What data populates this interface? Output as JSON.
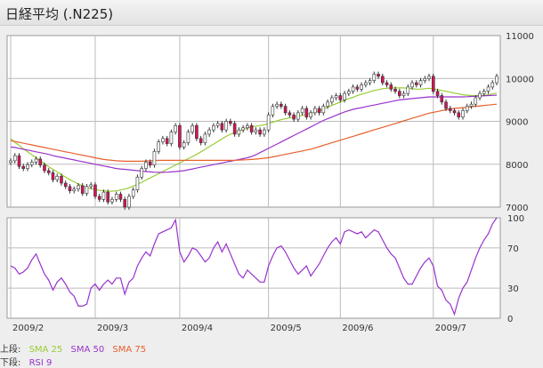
{
  "title": "日経平均 (.N225)",
  "legend": {
    "upper_label": "上段:",
    "lower_label": "下段:",
    "upper": [
      {
        "name": "SMA 25",
        "color": "#99cc33"
      },
      {
        "name": "SMA 50",
        "color": "#9933cc"
      },
      {
        "name": "SMA 75",
        "color": "#e8602c"
      }
    ],
    "lower": [
      {
        "name": "RSI 9",
        "color": "#9933cc"
      }
    ]
  },
  "colors": {
    "up_candle": "#ffffff",
    "down_candle": "#d4145a",
    "candle_outline": "#333333",
    "grid": "#bbbbbb",
    "panel_border": "#999999"
  },
  "chart_data": [
    {
      "type": "candlestick",
      "panel": "price",
      "ylim": [
        7000,
        11000
      ],
      "y_ticks": [
        7000,
        8000,
        9000,
        10000,
        11000
      ],
      "x_ticks": [
        {
          "label": "2009/2",
          "index": 0
        },
        {
          "label": "2009/3",
          "index": 20
        },
        {
          "label": "2009/4",
          "index": 40
        },
        {
          "label": "2009/5",
          "index": 61
        },
        {
          "label": "2009/6",
          "index": 78
        },
        {
          "label": "2009/7",
          "index": 100
        }
      ],
      "close": [
        8080,
        8200,
        7950,
        7900,
        7990,
        8050,
        8120,
        7980,
        7850,
        7800,
        7640,
        7720,
        7560,
        7480,
        7380,
        7420,
        7500,
        7320,
        7480,
        7520,
        7250,
        7180,
        7350,
        7120,
        7180,
        7300,
        7180,
        7000,
        7250,
        7400,
        7700,
        7900,
        8050,
        7980,
        8300,
        8520,
        8600,
        8480,
        8750,
        8900,
        8400,
        8500,
        8750,
        8900,
        8600,
        8500,
        8700,
        8800,
        8900,
        8950,
        8800,
        9000,
        8950,
        8700,
        8800,
        8850,
        8900,
        8750,
        8800,
        8700,
        8800,
        9150,
        9350,
        9400,
        9350,
        9200,
        9150,
        9050,
        9200,
        9300,
        9100,
        9200,
        9300,
        9200,
        9350,
        9450,
        9550,
        9600,
        9500,
        9650,
        9700,
        9800,
        9750,
        9850,
        9900,
        9950,
        10100,
        10050,
        9900,
        9850,
        9750,
        9700,
        9600,
        9650,
        9800,
        9900,
        9850,
        9950,
        10000,
        10050,
        9700,
        9600,
        9450,
        9300,
        9250,
        9200,
        9100,
        9250,
        9350,
        9400,
        9550,
        9650,
        9700,
        9800,
        9900,
        10050
      ],
      "series": [
        {
          "name": "SMA 25",
          "color": "#99cc33",
          "values": [
            8600,
            8510,
            8440,
            8360,
            8290,
            8220,
            8150,
            8080,
            8010,
            7940,
            7880,
            7820,
            7760,
            7700,
            7640,
            7590,
            7540,
            7500,
            7460,
            7430,
            7410,
            7390,
            7380,
            7370,
            7370,
            7380,
            7400,
            7420,
            7450,
            7490,
            7530,
            7580,
            7630,
            7680,
            7730,
            7780,
            7830,
            7880,
            7930,
            7980,
            8030,
            8080,
            8130,
            8180,
            8230,
            8290,
            8350,
            8410,
            8470,
            8530,
            8590,
            8650,
            8700,
            8740,
            8780,
            8810,
            8840,
            8870,
            8890,
            8900,
            8920,
            8950,
            8980,
            9010,
            9040,
            9060,
            9080,
            9100,
            9120,
            9140,
            9160,
            9190,
            9220,
            9250,
            9290,
            9330,
            9370,
            9410,
            9450,
            9490,
            9530,
            9560,
            9600,
            9630,
            9660,
            9690,
            9720,
            9740,
            9760,
            9770,
            9780,
            9780,
            9780,
            9780,
            9770,
            9760,
            9750,
            9750,
            9760,
            9770,
            9760,
            9740,
            9720,
            9700,
            9680,
            9660,
            9640,
            9620,
            9610,
            9600,
            9600,
            9600,
            9610,
            9620,
            9640,
            9660
          ]
        },
        {
          "name": "SMA 50",
          "color": "#9933cc",
          "values": [
            8400,
            8390,
            8370,
            8350,
            8330,
            8310,
            8290,
            8270,
            8250,
            8230,
            8200,
            8180,
            8160,
            8140,
            8120,
            8100,
            8080,
            8060,
            8040,
            8020,
            8000,
            7980,
            7960,
            7940,
            7920,
            7900,
            7890,
            7880,
            7870,
            7860,
            7850,
            7840,
            7830,
            7820,
            7815,
            7810,
            7810,
            7815,
            7820,
            7830,
            7840,
            7850,
            7870,
            7890,
            7910,
            7930,
            7950,
            7970,
            7990,
            8010,
            8030,
            8050,
            8070,
            8090,
            8110,
            8130,
            8150,
            8180,
            8220,
            8270,
            8320,
            8370,
            8420,
            8470,
            8520,
            8570,
            8620,
            8670,
            8720,
            8770,
            8820,
            8870,
            8920,
            8970,
            9020,
            9060,
            9100,
            9140,
            9180,
            9220,
            9250,
            9280,
            9300,
            9320,
            9340,
            9360,
            9380,
            9400,
            9420,
            9440,
            9460,
            9480,
            9500,
            9510,
            9520,
            9530,
            9540,
            9550,
            9560,
            9570,
            9570,
            9570,
            9570,
            9570,
            9570,
            9570,
            9570,
            9570,
            9575,
            9580,
            9585,
            9590,
            9595,
            9600,
            9605,
            9610
          ]
        },
        {
          "name": "SMA 75",
          "color": "#e8602c",
          "values": [
            8550,
            8530,
            8510,
            8490,
            8470,
            8450,
            8430,
            8410,
            8390,
            8370,
            8350,
            8330,
            8310,
            8290,
            8270,
            8250,
            8230,
            8210,
            8190,
            8170,
            8150,
            8130,
            8110,
            8100,
            8090,
            8080,
            8075,
            8070,
            8070,
            8070,
            8070,
            8070,
            8075,
            8080,
            8085,
            8090,
            8090,
            8090,
            8090,
            8090,
            8090,
            8090,
            8090,
            8090,
            8090,
            8090,
            8090,
            8090,
            8090,
            8090,
            8090,
            8090,
            8090,
            8090,
            8095,
            8100,
            8105,
            8110,
            8120,
            8130,
            8140,
            8150,
            8170,
            8190,
            8210,
            8230,
            8250,
            8270,
            8290,
            8310,
            8330,
            8350,
            8380,
            8410,
            8440,
            8470,
            8500,
            8530,
            8560,
            8590,
            8620,
            8650,
            8680,
            8710,
            8740,
            8770,
            8800,
            8830,
            8860,
            8890,
            8920,
            8950,
            8980,
            9010,
            9040,
            9070,
            9100,
            9130,
            9160,
            9190,
            9210,
            9230,
            9250,
            9270,
            9290,
            9300,
            9310,
            9320,
            9330,
            9340,
            9350,
            9360,
            9370,
            9380,
            9390,
            9400
          ]
        }
      ]
    },
    {
      "type": "line",
      "panel": "rsi",
      "ylim": [
        0,
        100
      ],
      "y_ticks": [
        0,
        30,
        70,
        100
      ],
      "series": [
        {
          "name": "RSI 9",
          "color": "#9933cc",
          "values": [
            52,
            50,
            44,
            46,
            50,
            58,
            64,
            54,
            44,
            38,
            28,
            36,
            40,
            34,
            26,
            22,
            12,
            12,
            14,
            30,
            34,
            28,
            34,
            38,
            34,
            40,
            40,
            24,
            36,
            40,
            52,
            60,
            66,
            62,
            74,
            84,
            86,
            88,
            90,
            98,
            66,
            56,
            62,
            70,
            68,
            62,
            56,
            60,
            70,
            76,
            66,
            74,
            64,
            54,
            44,
            40,
            48,
            44,
            40,
            36,
            36,
            52,
            62,
            70,
            72,
            66,
            58,
            50,
            44,
            48,
            52,
            42,
            48,
            54,
            62,
            70,
            76,
            80,
            74,
            86,
            88,
            86,
            84,
            86,
            80,
            84,
            88,
            86,
            78,
            70,
            64,
            60,
            50,
            40,
            34,
            34,
            42,
            50,
            56,
            60,
            52,
            32,
            28,
            18,
            14,
            4,
            20,
            30,
            36,
            48,
            60,
            70,
            78,
            84,
            94,
            100
          ]
        }
      ]
    }
  ]
}
